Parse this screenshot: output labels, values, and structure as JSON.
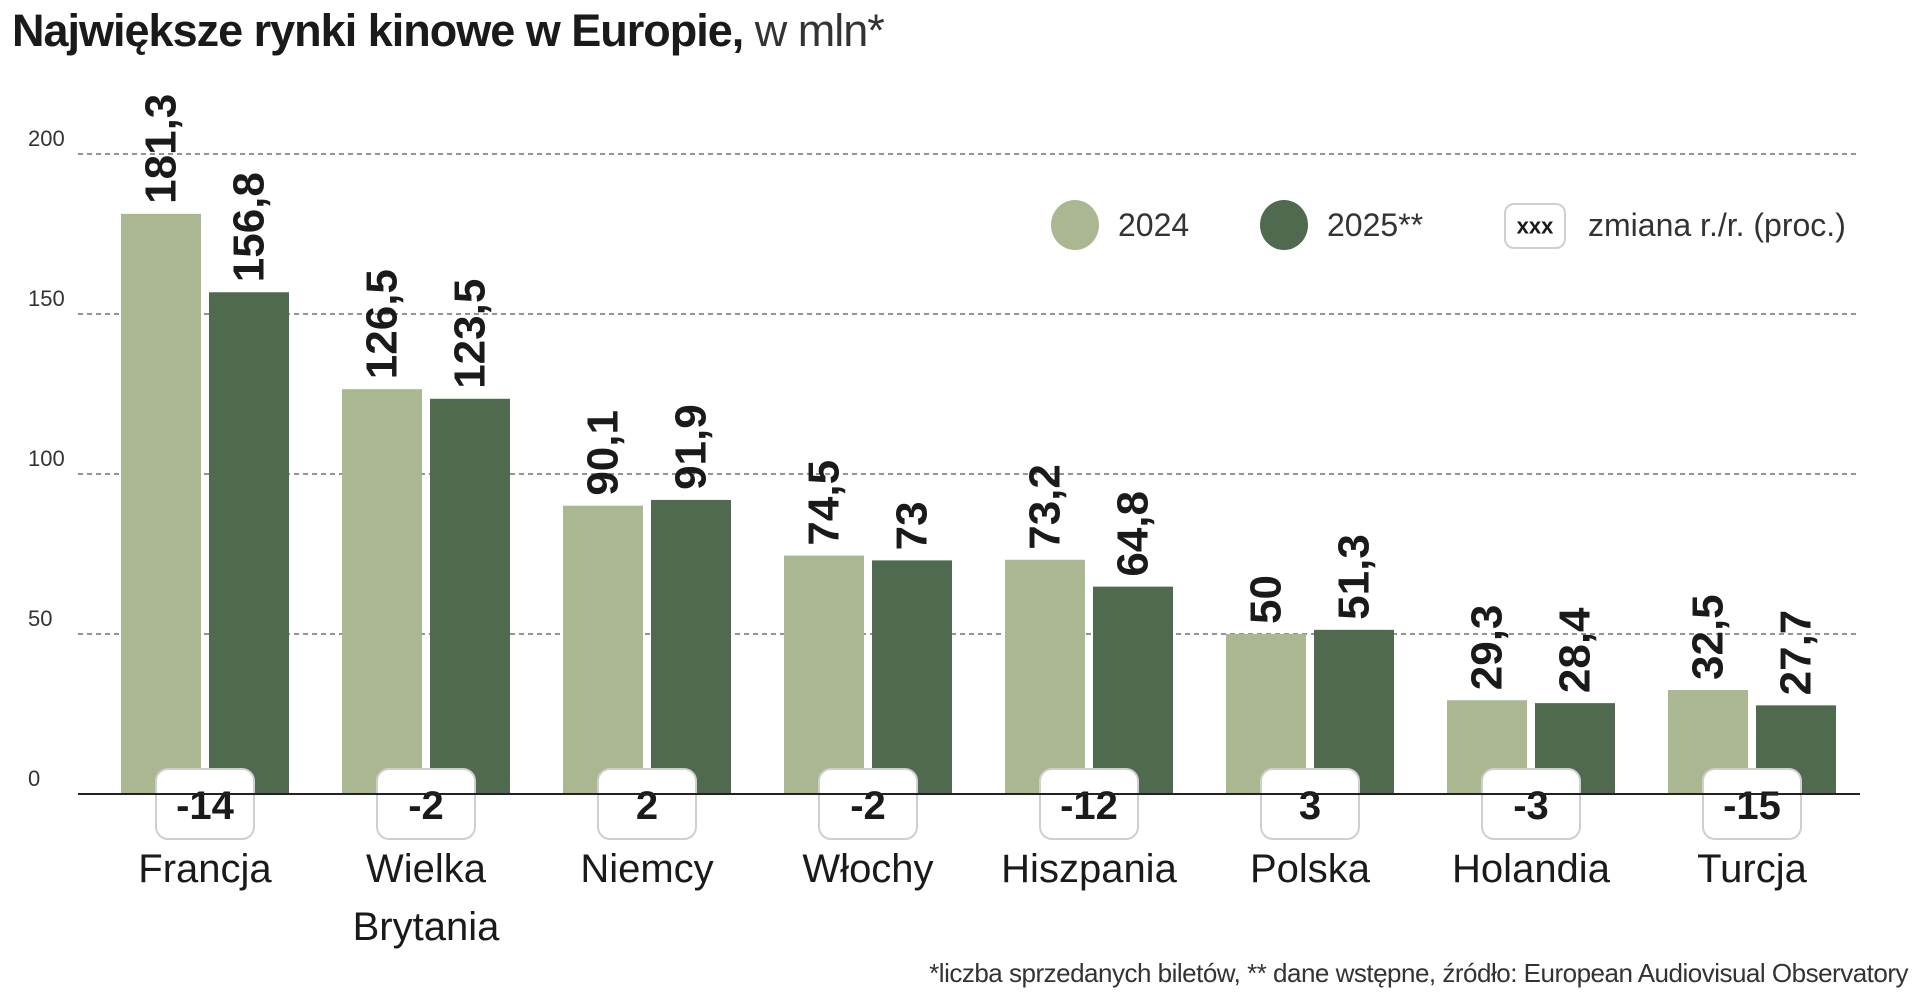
{
  "title_bold": "Największe rynki kinowe w Europie,",
  "title_light": " w mln*",
  "footnote": "*liczba sprzedanych biletów, ** dane wstępne, źródło: European Audiovisual Observatory",
  "colors": {
    "series_2024": "#aab791",
    "series_2025": "#4f6a4e",
    "grid": "#555555",
    "text": "#1a1a1a"
  },
  "legend": {
    "series_2024": "2024",
    "series_2025": "2025**",
    "change_box": "xxx",
    "change_label": "zmiana r./r. (proc.)"
  },
  "chart_data": {
    "type": "bar",
    "title": "Największe rynki kinowe w Europie, w mln*",
    "ylim": [
      0,
      200
    ],
    "yticks": [
      0,
      50,
      100,
      150,
      200
    ],
    "grid": true,
    "legend_position": "top-right",
    "categories": [
      {
        "line1": "Francja",
        "line2": ""
      },
      {
        "line1": "Wielka",
        "line2": "Brytania"
      },
      {
        "line1": "Niemcy",
        "line2": ""
      },
      {
        "line1": "Włochy",
        "line2": ""
      },
      {
        "line1": "Hiszpania",
        "line2": ""
      },
      {
        "line1": "Polska",
        "line2": ""
      },
      {
        "line1": "Holandia",
        "line2": ""
      },
      {
        "line1": "Turcja",
        "line2": ""
      }
    ],
    "series": [
      {
        "name": "2024",
        "values": [
          181.3,
          126.5,
          90.1,
          74.5,
          73.2,
          50,
          29.3,
          32.5
        ],
        "labels": [
          "181,3",
          "126,5",
          "90,1",
          "74,5",
          "73,2",
          "50",
          "29,3",
          "32,5"
        ]
      },
      {
        "name": "2025**",
        "values": [
          156.8,
          123.5,
          91.9,
          73,
          64.8,
          51.3,
          28.4,
          27.7
        ],
        "labels": [
          "156,8",
          "123,5",
          "91,9",
          "73",
          "64,8",
          "51,3",
          "28,4",
          "27,7"
        ]
      }
    ],
    "change_yoy": [
      "-14",
      "-2",
      "2",
      "-2",
      "-12",
      "3",
      "-3",
      "-15"
    ]
  }
}
